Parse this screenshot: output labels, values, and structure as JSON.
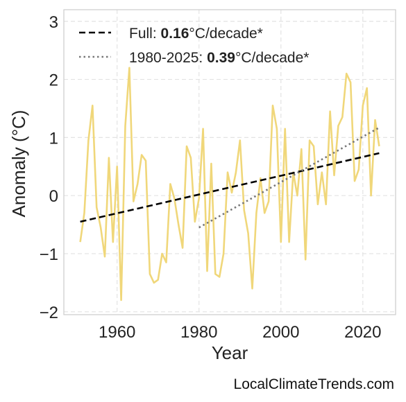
{
  "chart_data": {
    "type": "line",
    "xlabel": "Year",
    "ylabel": "Anomaly (°C)",
    "xlim": [
      1947,
      2028
    ],
    "ylim": [
      -2.05,
      3.2
    ],
    "xticks": [
      1960,
      1980,
      2000,
      2020
    ],
    "xtick_labels": [
      "1960",
      "1980",
      "2000",
      "2020"
    ],
    "yticks": [
      -2,
      -1,
      0,
      1,
      2,
      3
    ],
    "ytick_labels": [
      "−2",
      "−1",
      "0",
      "1",
      "2",
      "3"
    ],
    "grid": true,
    "legend_position": "top-left",
    "series": [
      {
        "kind": "anomaly",
        "color": "#f0d77a",
        "x": [
          1951,
          1952,
          1953,
          1954,
          1955,
          1956,
          1957,
          1958,
          1959,
          1960,
          1961,
          1962,
          1963,
          1964,
          1965,
          1966,
          1967,
          1968,
          1969,
          1970,
          1971,
          1972,
          1973,
          1974,
          1975,
          1976,
          1977,
          1978,
          1979,
          1980,
          1981,
          1982,
          1983,
          1984,
          1985,
          1986,
          1987,
          1988,
          1989,
          1990,
          1991,
          1992,
          1993,
          1994,
          1995,
          1996,
          1997,
          1998,
          1999,
          2000,
          2001,
          2002,
          2003,
          2004,
          2005,
          2006,
          2007,
          2008,
          2009,
          2010,
          2011,
          2012,
          2013,
          2014,
          2015,
          2016,
          2017,
          2018,
          2019,
          2020,
          2021,
          2022,
          2023,
          2024
        ],
        "values": [
          -0.8,
          -0.3,
          0.95,
          1.55,
          -0.2,
          -0.55,
          -1.05,
          0.65,
          -0.8,
          0.5,
          -1.8,
          1.2,
          2.2,
          -0.1,
          0.2,
          0.7,
          0.6,
          -1.35,
          -1.5,
          -1.45,
          -1.0,
          -1.15,
          0.2,
          -0.05,
          -0.5,
          -0.9,
          0.85,
          0.65,
          -0.45,
          -0.05,
          1.15,
          -1.3,
          0.55,
          -1.35,
          -1.4,
          -1.0,
          0.4,
          0.05,
          0.4,
          0.95,
          -0.25,
          -0.65,
          -1.6,
          -0.3,
          0.3,
          -0.3,
          -0.1,
          1.55,
          1.15,
          -0.8,
          1.15,
          -0.8,
          0.4,
          0.0,
          0.8,
          -1.1,
          0.95,
          0.85,
          -0.15,
          0.4,
          -0.15,
          1.45,
          0.35,
          1.2,
          1.35,
          2.1,
          1.95,
          0.25,
          0.45,
          1.55,
          1.85,
          0.0,
          1.3,
          0.85
        ]
      },
      {
        "kind": "trend-full",
        "color": "#000000",
        "x": [
          1951,
          2024
        ],
        "values": [
          -0.45,
          0.73
        ]
      },
      {
        "kind": "trend-recent",
        "color": "#777777",
        "x": [
          1980,
          2024
        ],
        "values": [
          -0.55,
          1.17
        ]
      }
    ],
    "legend": [
      {
        "prefix": "Full: ",
        "rate": "0.16",
        "suffix": "°C/decade*",
        "style": "dashed",
        "color": "#000000"
      },
      {
        "prefix": "1980-2025: ",
        "rate": "0.39",
        "suffix": "°C/decade*",
        "style": "dotted",
        "color": "#777777"
      }
    ],
    "source": "LocalClimateTrends.com"
  }
}
